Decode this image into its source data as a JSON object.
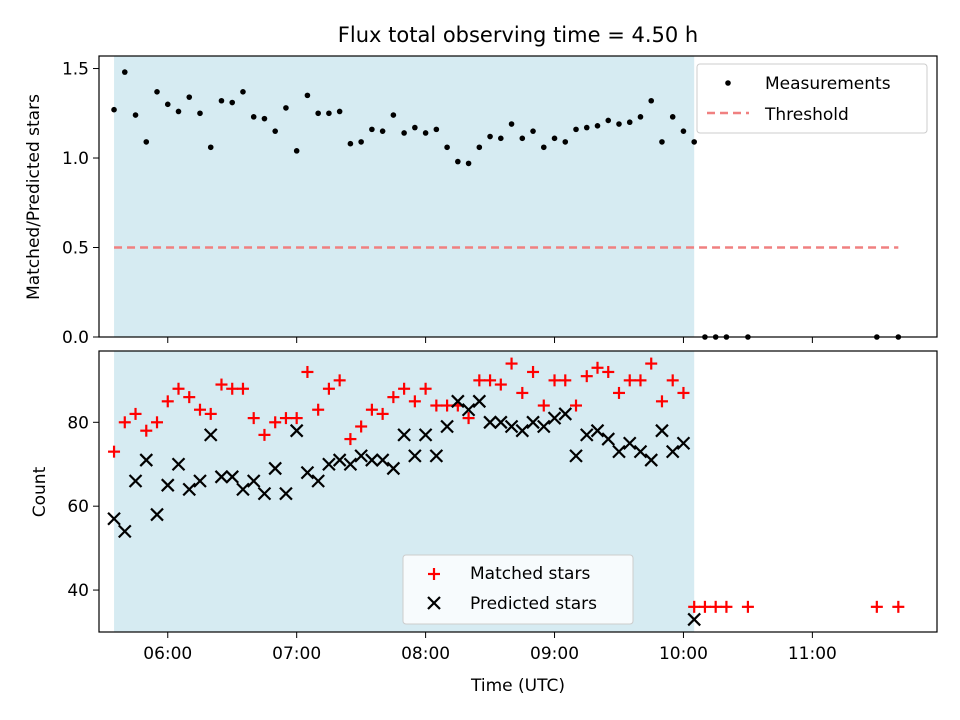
{
  "chart_data": [
    {
      "type": "scatter",
      "title": "Flux total observing time = 4.50 h",
      "xlabel": "",
      "ylabel": "Matched/Predicted stars",
      "xlim": [
        "05:28",
        "11:58"
      ],
      "ylim": [
        0,
        1.57
      ],
      "yticks": [
        "0.0",
        "0.5",
        "1.0",
        "1.5"
      ],
      "shaded_interval": [
        "05:35",
        "10:05"
      ],
      "legend_position": "top-right",
      "series": [
        {
          "name": "Measurements",
          "marker": "dot",
          "color": "#000000",
          "points": [
            [
              "05:35",
              1.27
            ],
            [
              "05:40",
              1.48
            ],
            [
              "05:45",
              1.24
            ],
            [
              "05:50",
              1.09
            ],
            [
              "05:55",
              1.37
            ],
            [
              "06:00",
              1.3
            ],
            [
              "06:05",
              1.26
            ],
            [
              "06:10",
              1.34
            ],
            [
              "06:15",
              1.25
            ],
            [
              "06:20",
              1.06
            ],
            [
              "06:25",
              1.32
            ],
            [
              "06:30",
              1.31
            ],
            [
              "06:35",
              1.37
            ],
            [
              "06:40",
              1.23
            ],
            [
              "06:45",
              1.22
            ],
            [
              "06:50",
              1.15
            ],
            [
              "06:55",
              1.28
            ],
            [
              "07:00",
              1.04
            ],
            [
              "07:05",
              1.35
            ],
            [
              "07:10",
              1.25
            ],
            [
              "07:15",
              1.25
            ],
            [
              "07:20",
              1.26
            ],
            [
              "07:25",
              1.08
            ],
            [
              "07:30",
              1.09
            ],
            [
              "07:35",
              1.16
            ],
            [
              "07:40",
              1.15
            ],
            [
              "07:45",
              1.24
            ],
            [
              "07:50",
              1.14
            ],
            [
              "07:55",
              1.17
            ],
            [
              "08:00",
              1.14
            ],
            [
              "08:05",
              1.16
            ],
            [
              "08:10",
              1.06
            ],
            [
              "08:15",
              0.98
            ],
            [
              "08:20",
              0.97
            ],
            [
              "08:25",
              1.06
            ],
            [
              "08:30",
              1.12
            ],
            [
              "08:35",
              1.11
            ],
            [
              "08:40",
              1.19
            ],
            [
              "08:45",
              1.11
            ],
            [
              "08:50",
              1.15
            ],
            [
              "08:55",
              1.06
            ],
            [
              "09:00",
              1.11
            ],
            [
              "09:05",
              1.09
            ],
            [
              "09:10",
              1.16
            ],
            [
              "09:15",
              1.17
            ],
            [
              "09:20",
              1.18
            ],
            [
              "09:25",
              1.21
            ],
            [
              "09:30",
              1.19
            ],
            [
              "09:35",
              1.2
            ],
            [
              "09:40",
              1.23
            ],
            [
              "09:45",
              1.32
            ],
            [
              "09:50",
              1.09
            ],
            [
              "09:55",
              1.23
            ],
            [
              "10:00",
              1.15
            ],
            [
              "10:05",
              1.09
            ],
            [
              "10:10",
              0.0
            ],
            [
              "10:15",
              0.0
            ],
            [
              "10:20",
              0.0
            ],
            [
              "10:30",
              0.0
            ],
            [
              "11:30",
              0.0
            ],
            [
              "11:40",
              0.0
            ]
          ]
        },
        {
          "name": "Threshold",
          "marker": "dashed-line",
          "color": "#f08080",
          "points": [
            [
              "05:35",
              0.5
            ],
            [
              "11:40",
              0.5
            ]
          ]
        }
      ]
    },
    {
      "type": "scatter",
      "title": "",
      "xlabel": "Time (UTC)",
      "ylabel": "Count",
      "xlim": [
        "05:28",
        "11:58"
      ],
      "ylim": [
        30,
        97
      ],
      "yticks": [
        "40",
        "60",
        "80"
      ],
      "xticks": [
        "06:00",
        "07:00",
        "08:00",
        "09:00",
        "10:00",
        "11:00"
      ],
      "shaded_interval": [
        "05:35",
        "10:05"
      ],
      "legend_position": "lower-center",
      "series": [
        {
          "name": "Matched stars",
          "marker": "plus",
          "color": "#ff0000",
          "points": [
            [
              "05:35",
              73
            ],
            [
              "05:40",
              80
            ],
            [
              "05:45",
              82
            ],
            [
              "05:50",
              78
            ],
            [
              "05:55",
              80
            ],
            [
              "06:00",
              85
            ],
            [
              "06:05",
              88
            ],
            [
              "06:10",
              86
            ],
            [
              "06:15",
              83
            ],
            [
              "06:20",
              82
            ],
            [
              "06:25",
              89
            ],
            [
              "06:30",
              88
            ],
            [
              "06:35",
              88
            ],
            [
              "06:40",
              81
            ],
            [
              "06:45",
              77
            ],
            [
              "06:50",
              80
            ],
            [
              "06:55",
              81
            ],
            [
              "07:00",
              81
            ],
            [
              "07:05",
              92
            ],
            [
              "07:10",
              83
            ],
            [
              "07:15",
              88
            ],
            [
              "07:20",
              90
            ],
            [
              "07:25",
              76
            ],
            [
              "07:30",
              79
            ],
            [
              "07:35",
              83
            ],
            [
              "07:40",
              82
            ],
            [
              "07:45",
              86
            ],
            [
              "07:50",
              88
            ],
            [
              "07:55",
              85
            ],
            [
              "08:00",
              88
            ],
            [
              "08:05",
              84
            ],
            [
              "08:10",
              84
            ],
            [
              "08:15",
              84
            ],
            [
              "08:20",
              81
            ],
            [
              "08:25",
              90
            ],
            [
              "08:30",
              90
            ],
            [
              "08:35",
              89
            ],
            [
              "08:40",
              94
            ],
            [
              "08:45",
              87
            ],
            [
              "08:50",
              92
            ],
            [
              "08:55",
              84
            ],
            [
              "09:00",
              90
            ],
            [
              "09:05",
              90
            ],
            [
              "09:10",
              84
            ],
            [
              "09:15",
              91
            ],
            [
              "09:20",
              93
            ],
            [
              "09:25",
              92
            ],
            [
              "09:30",
              87
            ],
            [
              "09:35",
              90
            ],
            [
              "09:40",
              90
            ],
            [
              "09:45",
              94
            ],
            [
              "09:50",
              85
            ],
            [
              "09:55",
              90
            ],
            [
              "10:00",
              87
            ],
            [
              "10:05",
              36
            ],
            [
              "10:10",
              36
            ],
            [
              "10:15",
              36
            ],
            [
              "10:20",
              36
            ],
            [
              "10:30",
              36
            ],
            [
              "11:30",
              36
            ],
            [
              "11:40",
              36
            ]
          ]
        },
        {
          "name": "Predicted stars",
          "marker": "x",
          "color": "#000000",
          "points": [
            [
              "05:35",
              57
            ],
            [
              "05:40",
              54
            ],
            [
              "05:45",
              66
            ],
            [
              "05:50",
              71
            ],
            [
              "05:55",
              58
            ],
            [
              "06:00",
              65
            ],
            [
              "06:05",
              70
            ],
            [
              "06:10",
              64
            ],
            [
              "06:15",
              66
            ],
            [
              "06:20",
              77
            ],
            [
              "06:25",
              67
            ],
            [
              "06:30",
              67
            ],
            [
              "06:35",
              64
            ],
            [
              "06:40",
              66
            ],
            [
              "06:45",
              63
            ],
            [
              "06:50",
              69
            ],
            [
              "06:55",
              63
            ],
            [
              "07:00",
              78
            ],
            [
              "07:05",
              68
            ],
            [
              "07:10",
              66
            ],
            [
              "07:15",
              70
            ],
            [
              "07:20",
              71
            ],
            [
              "07:25",
              70
            ],
            [
              "07:30",
              72
            ],
            [
              "07:35",
              71
            ],
            [
              "07:40",
              71
            ],
            [
              "07:45",
              69
            ],
            [
              "07:50",
              77
            ],
            [
              "07:55",
              72
            ],
            [
              "08:00",
              77
            ],
            [
              "08:05",
              72
            ],
            [
              "08:10",
              79
            ],
            [
              "08:15",
              85
            ],
            [
              "08:20",
              83
            ],
            [
              "08:25",
              85
            ],
            [
              "08:30",
              80
            ],
            [
              "08:35",
              80
            ],
            [
              "08:40",
              79
            ],
            [
              "08:45",
              78
            ],
            [
              "08:50",
              80
            ],
            [
              "08:55",
              79
            ],
            [
              "09:00",
              81
            ],
            [
              "09:05",
              82
            ],
            [
              "09:10",
              72
            ],
            [
              "09:15",
              77
            ],
            [
              "09:20",
              78
            ],
            [
              "09:25",
              76
            ],
            [
              "09:30",
              73
            ],
            [
              "09:35",
              75
            ],
            [
              "09:40",
              73
            ],
            [
              "09:45",
              71
            ],
            [
              "09:50",
              78
            ],
            [
              "09:55",
              73
            ],
            [
              "10:00",
              75
            ],
            [
              "10:05",
              33
            ]
          ]
        }
      ]
    }
  ]
}
